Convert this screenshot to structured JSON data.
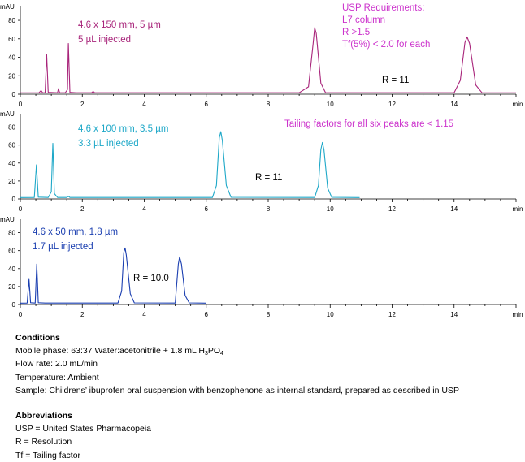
{
  "chart_data": [
    {
      "type": "line",
      "ylabel": "mAU",
      "xunit": "min",
      "xlim": [
        0,
        16
      ],
      "ylim": [
        0,
        95
      ],
      "xticks": [
        0,
        2,
        4,
        6,
        8,
        10,
        12,
        14
      ],
      "yticks": [
        0,
        20,
        40,
        60,
        80
      ],
      "color": "#a8247a",
      "series": [
        {
          "values": [
            [
              0,
              1.5
            ],
            [
              0.6,
              1.6
            ],
            [
              0.67,
              4
            ],
            [
              0.72,
              1.6
            ],
            [
              0.8,
              1.6
            ],
            [
              0.85,
              43
            ],
            [
              0.9,
              2
            ],
            [
              1.2,
              1.6
            ],
            [
              1.23,
              6
            ],
            [
              1.27,
              1.6
            ],
            [
              1.45,
              1.6
            ],
            [
              1.52,
              5
            ],
            [
              1.55,
              55
            ],
            [
              1.6,
              2
            ],
            [
              1.8,
              1.6
            ],
            [
              2.3,
              1.6
            ],
            [
              2.35,
              3
            ],
            [
              2.4,
              1.6
            ],
            [
              9.0,
              1.6
            ],
            [
              9.3,
              8
            ],
            [
              9.45,
              55
            ],
            [
              9.5,
              72
            ],
            [
              9.55,
              66
            ],
            [
              9.7,
              12
            ],
            [
              9.85,
              1.8
            ],
            [
              14.0,
              1.6
            ],
            [
              14.2,
              15
            ],
            [
              14.35,
              56
            ],
            [
              14.42,
              62
            ],
            [
              14.5,
              55
            ],
            [
              14.7,
              10
            ],
            [
              14.9,
              1.6
            ],
            [
              16.0,
              1.5
            ]
          ]
        }
      ],
      "annotations": [
        {
          "lines": [
            "4.6 x 150 mm, 5 µm",
            "5 µL injected"
          ],
          "color": "#a8247a"
        },
        {
          "lines": [
            "USP Requirements:",
            "L7 column",
            "R >1.5",
            "Tf(5%) < 2.0 for each"
          ],
          "color": "#cc33cc"
        },
        {
          "lines": [
            "R = 11"
          ],
          "color": "#000000"
        }
      ]
    },
    {
      "type": "line",
      "ylabel": "mAU",
      "xunit": "min",
      "xlim": [
        0,
        16
      ],
      "ylim": [
        0,
        95
      ],
      "xticks": [
        0,
        2,
        4,
        6,
        8,
        10,
        12,
        14
      ],
      "yticks": [
        0,
        20,
        40,
        60,
        80
      ],
      "color": "#1ea8c8",
      "series": [
        {
          "values": [
            [
              0,
              1.5
            ],
            [
              0.45,
              1.6
            ],
            [
              0.52,
              38
            ],
            [
              0.58,
              2
            ],
            [
              0.9,
              1.6
            ],
            [
              1.0,
              8
            ],
            [
              1.05,
              62
            ],
            [
              1.1,
              6
            ],
            [
              1.2,
              1.6
            ],
            [
              1.5,
              1.6
            ],
            [
              1.55,
              3
            ],
            [
              1.6,
              1.6
            ],
            [
              6.2,
              1.6
            ],
            [
              6.33,
              15
            ],
            [
              6.42,
              68
            ],
            [
              6.47,
              75
            ],
            [
              6.52,
              65
            ],
            [
              6.65,
              15
            ],
            [
              6.8,
              1.8
            ],
            [
              9.5,
              1.6
            ],
            [
              9.62,
              15
            ],
            [
              9.7,
              55
            ],
            [
              9.75,
              63
            ],
            [
              9.8,
              55
            ],
            [
              9.92,
              12
            ],
            [
              10.05,
              1.8
            ],
            [
              10.95,
              1.5
            ]
          ]
        }
      ],
      "annotations": [
        {
          "lines": [
            "4.6 x 100 mm, 3.5 µm",
            "3.3 µL injected"
          ],
          "color": "#1ea8c8"
        },
        {
          "lines": [
            "Tailing factors for all six peaks are < 1.15"
          ],
          "color": "#cc33cc"
        },
        {
          "lines": [
            "R = 11"
          ],
          "color": "#000000"
        }
      ]
    },
    {
      "type": "line",
      "ylabel": "mAU",
      "xunit": "min",
      "xlim": [
        0,
        16
      ],
      "ylim": [
        0,
        95
      ],
      "xticks": [
        0,
        2,
        4,
        6,
        8,
        10,
        12,
        14
      ],
      "yticks": [
        0,
        20,
        40,
        60,
        80
      ],
      "color": "#1a3eb0",
      "series": [
        {
          "values": [
            [
              0,
              1.5
            ],
            [
              0.22,
              1.6
            ],
            [
              0.28,
              28
            ],
            [
              0.33,
              2
            ],
            [
              0.48,
              1.6
            ],
            [
              0.53,
              45
            ],
            [
              0.58,
              2
            ],
            [
              0.8,
              1.6
            ],
            [
              3.15,
              1.6
            ],
            [
              3.27,
              15
            ],
            [
              3.34,
              58
            ],
            [
              3.38,
              63
            ],
            [
              3.42,
              55
            ],
            [
              3.55,
              12
            ],
            [
              3.68,
              1.8
            ],
            [
              5.0,
              1.6
            ],
            [
              5.1,
              45
            ],
            [
              5.14,
              53
            ],
            [
              5.2,
              45
            ],
            [
              5.32,
              10
            ],
            [
              5.45,
              1.8
            ],
            [
              6.0,
              1.5
            ]
          ]
        }
      ],
      "annotations": [
        {
          "lines": [
            "4.6 x 50 mm, 1.8 µm",
            "1.7 µL injected"
          ],
          "color": "#1a3eb0"
        },
        {
          "lines": [
            "R = 10.0"
          ],
          "color": "#000000"
        }
      ]
    }
  ],
  "notes": {
    "conditions_title": "Conditions",
    "mobile_phase": "Mobile phase: 63:37 Water:acetonitrile + 1.8 mL H",
    "mobile_phase_sub1": "3",
    "mobile_phase_mid": "PO",
    "mobile_phase_sub2": "4",
    "flow_rate": "Flow rate: 2.0 mL/min",
    "temperature": "Temperature: Ambient",
    "sample": "Sample: Childrens’ ibuprofen oral suspension with benzophenone as internal standard, prepared as described in USP",
    "abbrev_title": "Abbreviations",
    "usp": "USP = United States Pharmacopeia",
    "r": "R = Resolution",
    "tf": "Tf = Tailing factor"
  }
}
